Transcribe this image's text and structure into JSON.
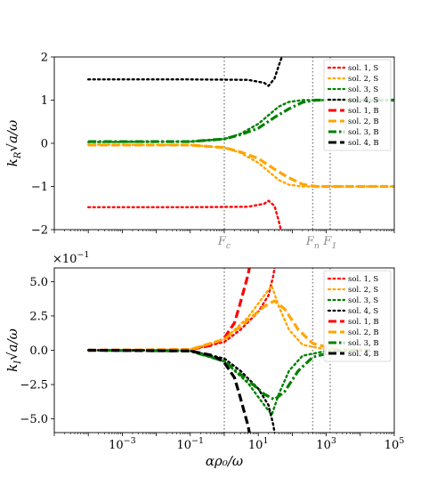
{
  "colors": {
    "sol1": "#ff0000",
    "sol2": "#ffa500",
    "sol3": "#008000",
    "sol4": "#000000",
    "vline": "#808080"
  },
  "chart_data": [
    {
      "type": "line",
      "ylabel": "k_R√a/ω",
      "xscale": "log",
      "xlim": [
        1e-05,
        100000
      ],
      "ylim": [
        -2,
        2
      ],
      "yticks": [
        "−2",
        "−1",
        "0",
        "1",
        "2"
      ],
      "grid": false,
      "legend_placement": "top-right",
      "legend": [
        "sol. 1, S",
        "sol. 2, S",
        "sol. 3, S",
        "sol. 4, S",
        "sol. 1, B",
        "sol. 2, B",
        "sol. 3, B",
        "sol. 4, B"
      ],
      "vlines": [
        {
          "x": 1,
          "label": "F_c"
        },
        {
          "x": 400,
          "label": "F_n"
        },
        {
          "x": 1300,
          "label": "F_1"
        }
      ],
      "series": [
        {
          "name": "sol. 1, S",
          "color_key": "sol1",
          "style": "dotted",
          "points": [
            [
              0.0001,
              -1.48
            ],
            [
              0.1,
              -1.48
            ],
            [
              5,
              -1.47
            ],
            [
              15,
              -1.4
            ],
            [
              20,
              -1.33
            ],
            [
              30,
              -1.45
            ],
            [
              40,
              -1.8
            ],
            [
              50,
              -2.1
            ]
          ]
        },
        {
          "name": "sol. 2, S",
          "color_key": "sol2",
          "style": "dotted",
          "points": [
            [
              0.0001,
              -0.03
            ],
            [
              0.1,
              -0.04
            ],
            [
              1,
              -0.1
            ],
            [
              3,
              -0.22
            ],
            [
              10,
              -0.45
            ],
            [
              20,
              -0.65
            ],
            [
              40,
              -0.85
            ],
            [
              80,
              -0.96
            ],
            [
              200,
              -1.0
            ],
            [
              100000,
              -1.0
            ]
          ]
        },
        {
          "name": "sol. 3, S",
          "color_key": "sol3",
          "style": "dotted",
          "points": [
            [
              0.0001,
              0.03
            ],
            [
              0.1,
              0.04
            ],
            [
              1,
              0.1
            ],
            [
              3,
              0.22
            ],
            [
              10,
              0.45
            ],
            [
              20,
              0.65
            ],
            [
              40,
              0.85
            ],
            [
              80,
              0.96
            ],
            [
              200,
              1.0
            ],
            [
              100000,
              1.0
            ]
          ]
        },
        {
          "name": "sol. 4, S",
          "color_key": "sol4",
          "style": "dotted",
          "points": [
            [
              0.0001,
              1.48
            ],
            [
              0.1,
              1.48
            ],
            [
              5,
              1.47
            ],
            [
              15,
              1.4
            ],
            [
              20,
              1.33
            ],
            [
              30,
              1.5
            ],
            [
              40,
              1.8
            ],
            [
              55,
              2.1
            ]
          ]
        },
        {
          "name": "sol. 2, B",
          "color_key": "sol2",
          "style": "dashed",
          "points": [
            [
              0.0001,
              -0.04
            ],
            [
              0.1,
              -0.04
            ],
            [
              1,
              -0.1
            ],
            [
              3,
              -0.2
            ],
            [
              10,
              -0.35
            ],
            [
              30,
              -0.6
            ],
            [
              80,
              -0.8
            ],
            [
              200,
              -0.95
            ],
            [
              500,
              -1.0
            ],
            [
              100000,
              -1.0
            ]
          ]
        },
        {
          "name": "sol. 3, B",
          "color_key": "sol3",
          "style": "dashdot",
          "points": [
            [
              0.0001,
              0.04
            ],
            [
              0.1,
              0.04
            ],
            [
              1,
              0.1
            ],
            [
              3,
              0.2
            ],
            [
              10,
              0.35
            ],
            [
              30,
              0.6
            ],
            [
              80,
              0.8
            ],
            [
              200,
              0.95
            ],
            [
              500,
              1.0
            ],
            [
              100000,
              1.0
            ]
          ]
        }
      ]
    },
    {
      "type": "line",
      "xlabel": "αρ₀/ω",
      "ylabel": "k_I√a/ω",
      "xscale": "log",
      "xlim": [
        1e-05,
        100000
      ],
      "ylim": [
        -6,
        6
      ],
      "yticks": [
        "−5.0",
        "−2.5",
        "0.0",
        "2.5",
        "5.0"
      ],
      "xticks": [
        "10^-3",
        "10^-1",
        "10^1",
        "10^3",
        "10^5"
      ],
      "multiplier": "×10^-1",
      "grid": false,
      "legend_placement": "top-right",
      "legend": [
        "sol. 1, S",
        "sol. 2, S",
        "sol. 3, S",
        "sol. 4, S",
        "sol. 1, B",
        "sol. 2, B",
        "sol. 3, B",
        "sol. 4, B"
      ],
      "vlines": [
        {
          "x": 1,
          "label": ""
        },
        {
          "x": 400,
          "label": ""
        },
        {
          "x": 1300,
          "label": ""
        }
      ],
      "series": [
        {
          "name": "sol. 1, S",
          "color_key": "sol1",
          "style": "dotted",
          "points": [
            [
              0.0001,
              0.0
            ],
            [
              0.01,
              0.0
            ],
            [
              0.1,
              0.05
            ],
            [
              1,
              0.6
            ],
            [
              3,
              1.5
            ],
            [
              10,
              2.8
            ],
            [
              20,
              4.0
            ],
            [
              28,
              5.5
            ],
            [
              32,
              6.5
            ]
          ]
        },
        {
          "name": "sol. 2, S",
          "color_key": "sol2",
          "style": "dotted",
          "points": [
            [
              0.0001,
              0.0
            ],
            [
              0.1,
              0.05
            ],
            [
              1,
              0.8
            ],
            [
              5,
              2.4
            ],
            [
              15,
              4.0
            ],
            [
              25,
              4.7
            ],
            [
              40,
              3.2
            ],
            [
              80,
              1.5
            ],
            [
              200,
              0.4
            ],
            [
              1000,
              0.05
            ],
            [
              10000,
              0.0
            ]
          ]
        },
        {
          "name": "sol. 3, S",
          "color_key": "sol3",
          "style": "dotted",
          "points": [
            [
              0.0001,
              0.0
            ],
            [
              0.1,
              -0.05
            ],
            [
              1,
              -0.8
            ],
            [
              5,
              -2.4
            ],
            [
              15,
              -4.0
            ],
            [
              25,
              -4.7
            ],
            [
              40,
              -3.2
            ],
            [
              80,
              -1.5
            ],
            [
              200,
              -0.4
            ],
            [
              1000,
              -0.05
            ],
            [
              10000,
              0.0
            ]
          ]
        },
        {
          "name": "sol. 4, S",
          "color_key": "sol4",
          "style": "dotted",
          "points": [
            [
              0.0001,
              0.0
            ],
            [
              0.01,
              0.0
            ],
            [
              0.1,
              -0.05
            ],
            [
              1,
              -0.6
            ],
            [
              3,
              -1.5
            ],
            [
              10,
              -2.8
            ],
            [
              20,
              -4.0
            ],
            [
              28,
              -5.5
            ],
            [
              32,
              -6.5
            ]
          ]
        },
        {
          "name": "sol. 1, B",
          "color_key": "sol1",
          "style": "dashed",
          "points": [
            [
              0.0001,
              0.0
            ],
            [
              0.1,
              0.05
            ],
            [
              0.5,
              0.4
            ],
            [
              1,
              0.9
            ],
            [
              2,
              2.0
            ],
            [
              3,
              3.5
            ],
            [
              5,
              5.5
            ],
            [
              6,
              6.5
            ]
          ]
        },
        {
          "name": "sol. 2, B",
          "color_key": "sol2",
          "style": "dashed",
          "points": [
            [
              0.0001,
              0.0
            ],
            [
              0.1,
              0.05
            ],
            [
              1,
              0.8
            ],
            [
              5,
              2.2
            ],
            [
              15,
              3.2
            ],
            [
              30,
              3.6
            ],
            [
              60,
              3.0
            ],
            [
              150,
              1.5
            ],
            [
              400,
              0.5
            ],
            [
              2000,
              0.05
            ],
            [
              20000,
              0.0
            ]
          ]
        },
        {
          "name": "sol. 3, B",
          "color_key": "sol3",
          "style": "dashdot",
          "points": [
            [
              0.0001,
              0.0
            ],
            [
              0.1,
              -0.05
            ],
            [
              1,
              -0.8
            ],
            [
              5,
              -2.2
            ],
            [
              15,
              -3.2
            ],
            [
              30,
              -3.6
            ],
            [
              60,
              -3.0
            ],
            [
              150,
              -1.5
            ],
            [
              400,
              -0.5
            ],
            [
              2000,
              -0.05
            ],
            [
              20000,
              0.0
            ]
          ]
        },
        {
          "name": "sol. 4, B",
          "color_key": "sol4",
          "style": "dashed",
          "points": [
            [
              0.0001,
              0.0
            ],
            [
              0.1,
              -0.05
            ],
            [
              0.5,
              -0.4
            ],
            [
              1,
              -0.9
            ],
            [
              2,
              -2.0
            ],
            [
              3,
              -3.5
            ],
            [
              5,
              -5.5
            ],
            [
              6,
              -6.5
            ]
          ]
        }
      ]
    }
  ]
}
